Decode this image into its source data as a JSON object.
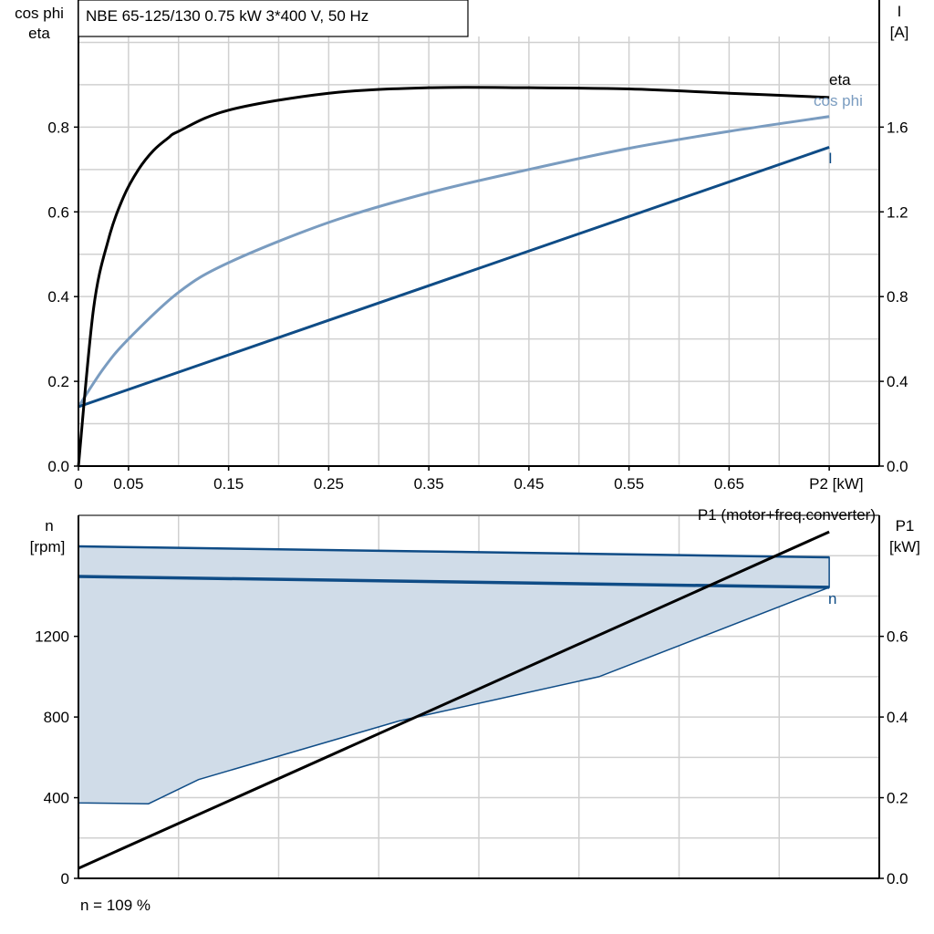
{
  "header": {
    "title": "NBE 65-125/130   0.75 kW   3*400 V, 50 Hz"
  },
  "footer": {
    "speed_note": "n = 109 %"
  },
  "colors": {
    "eta": "#000000",
    "cos_phi": "#7a9cc0",
    "current": "#0f4c86",
    "speed": "#0f4c86",
    "speed_band": "#d0dce8",
    "p1": "#000000"
  },
  "chart_data": [
    {
      "type": "line",
      "title": "NBE 65-125/130   0.75 kW   3*400 V, 50 Hz",
      "xlabel": "P2 [kW]",
      "ylabel": "cos phi\neta",
      "ylabel_lines": [
        "cos phi",
        "eta"
      ],
      "y2label_lines": [
        "I",
        "[A]"
      ],
      "xlim": [
        0,
        0.8
      ],
      "ylim": [
        0,
        1.1
      ],
      "y2lim": [
        0,
        2.2
      ],
      "x_tick_labels": [
        "0",
        "0.05",
        "0.15",
        "0.25",
        "0.35",
        "0.45",
        "0.55",
        "0.65",
        "P2 [kW]"
      ],
      "x_tick_values": [
        0,
        0.05,
        0.15,
        0.25,
        0.35,
        0.45,
        0.55,
        0.65,
        0.75
      ],
      "y_ticks": [
        "0.0",
        "0.2",
        "0.4",
        "0.6",
        "0.8"
      ],
      "y2_ticks": [
        "0.0",
        "0.4",
        "0.8",
        "1.2",
        "1.6"
      ],
      "grid": true,
      "series": [
        {
          "name": "eta",
          "axis": "left",
          "x": [
            0,
            0.015,
            0.03,
            0.045,
            0.06,
            0.075,
            0.09,
            0.1,
            0.15,
            0.25,
            0.35,
            0.45,
            0.55,
            0.65,
            0.75
          ],
          "values": [
            0,
            0.37,
            0.535,
            0.635,
            0.7,
            0.745,
            0.775,
            0.79,
            0.84,
            0.88,
            0.893,
            0.893,
            0.89,
            0.88,
            0.87
          ]
        },
        {
          "name": "cos phi",
          "axis": "left",
          "x": [
            0,
            0.025,
            0.05,
            0.1,
            0.15,
            0.25,
            0.35,
            0.45,
            0.55,
            0.65,
            0.75
          ],
          "values": [
            0.14,
            0.23,
            0.3,
            0.41,
            0.48,
            0.575,
            0.645,
            0.7,
            0.75,
            0.79,
            0.825
          ]
        },
        {
          "name": "I",
          "axis": "right",
          "x": [
            0,
            0.75
          ],
          "values": [
            0.28,
            1.505
          ]
        }
      ]
    },
    {
      "type": "line",
      "ylabel_lines": [
        "n",
        "[rpm]"
      ],
      "y2label_lines": [
        "P1",
        "[kW]"
      ],
      "xlim": [
        0,
        0.8
      ],
      "ylim": [
        0,
        1800
      ],
      "y2lim": [
        0,
        0.9
      ],
      "y_ticks": [
        "0",
        "400",
        "800",
        "1200"
      ],
      "y2_ticks": [
        "0.0",
        "0.2",
        "0.4",
        "0.6"
      ],
      "grid": true,
      "band": {
        "x_upper": [
          0,
          0.75
        ],
        "upper": [
          1646,
          1592
        ],
        "x_lower": [
          0,
          0.07,
          0.12,
          0.32,
          0.52,
          0.75
        ],
        "lower": [
          374,
          370,
          490,
          780,
          1000,
          1443
        ]
      },
      "series": [
        {
          "name": "n",
          "axis": "left",
          "x": [
            0,
            0.75
          ],
          "values": [
            1497,
            1443
          ]
        },
        {
          "name": "P1 (motor+freq.converter)",
          "axis": "right",
          "x": [
            0,
            0.75
          ],
          "values": [
            0.025,
            0.859
          ]
        }
      ]
    }
  ]
}
